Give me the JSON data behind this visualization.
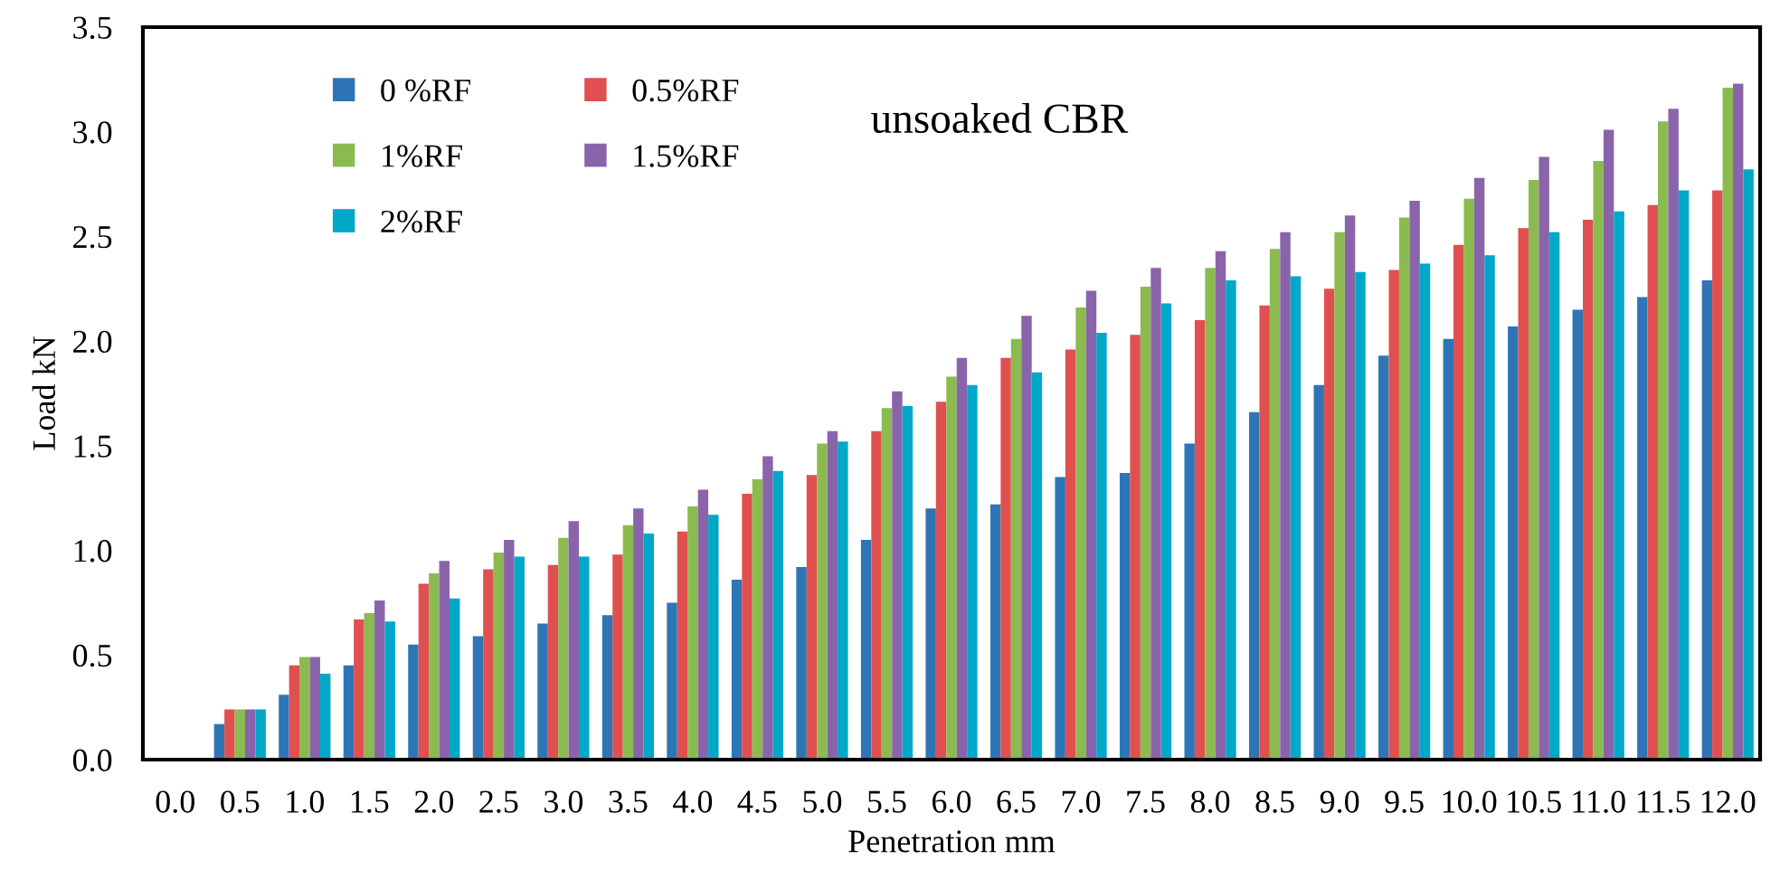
{
  "chart_data": {
    "type": "bar",
    "title": "unsoaked CBR",
    "xlabel": "Penetration mm",
    "ylabel": "Load kN",
    "categories": [
      "0.0",
      "0.5",
      "1.0",
      "1.5",
      "2.0",
      "2.5",
      "3.0",
      "3.5",
      "4.0",
      "4.5",
      "5.0",
      "5.5",
      "6.0",
      "6.5",
      "7.0",
      "7.5",
      "8.0",
      "8.5",
      "9.0",
      "9.5",
      "10.0",
      "10.5",
      "11.0",
      "11.5",
      "12.0"
    ],
    "series": [
      {
        "name": "0 %RF",
        "color": "#2e75b6",
        "values": [
          0,
          0.17,
          0.31,
          0.45,
          0.55,
          0.59,
          0.65,
          0.69,
          0.75,
          0.86,
          0.92,
          1.05,
          1.2,
          1.22,
          1.35,
          1.37,
          1.51,
          1.66,
          1.79,
          1.93,
          2.01,
          2.07,
          2.15,
          2.21,
          2.29
        ]
      },
      {
        "name": "0.5%RF",
        "color": "#e05050",
        "values": [
          0,
          0.24,
          0.45,
          0.67,
          0.84,
          0.91,
          0.93,
          0.98,
          1.09,
          1.27,
          1.36,
          1.57,
          1.71,
          1.92,
          1.96,
          2.03,
          2.1,
          2.17,
          2.25,
          2.34,
          2.46,
          2.54,
          2.58,
          2.65,
          2.72
        ]
      },
      {
        "name": "1%RF",
        "color": "#8bbb50",
        "values": [
          0,
          0.24,
          0.49,
          0.7,
          0.89,
          0.99,
          1.06,
          1.12,
          1.21,
          1.34,
          1.51,
          1.68,
          1.83,
          2.01,
          2.16,
          2.26,
          2.35,
          2.44,
          2.52,
          2.59,
          2.68,
          2.77,
          2.86,
          3.05,
          3.21
        ]
      },
      {
        "name": "1.5%RF",
        "color": "#8a64aa",
        "values": [
          0,
          0.24,
          0.49,
          0.76,
          0.95,
          1.05,
          1.14,
          1.2,
          1.29,
          1.45,
          1.57,
          1.76,
          1.92,
          2.12,
          2.24,
          2.35,
          2.43,
          2.52,
          2.6,
          2.67,
          2.78,
          2.88,
          3.01,
          3.11,
          3.23
        ]
      },
      {
        "name": "2%RF",
        "color": "#00a8c8",
        "values": [
          0,
          0.24,
          0.41,
          0.66,
          0.77,
          0.97,
          0.97,
          1.08,
          1.17,
          1.38,
          1.52,
          1.69,
          1.79,
          1.85,
          2.04,
          2.18,
          2.29,
          2.31,
          2.33,
          2.37,
          2.41,
          2.52,
          2.62,
          2.72,
          2.82
        ]
      }
    ],
    "ylim": [
      0,
      3.5
    ],
    "yticks": [
      {
        "value": 0,
        "label": "0.0"
      },
      {
        "value": 0.5,
        "label": "0.5"
      },
      {
        "value": 1,
        "label": "1.0"
      },
      {
        "value": 1.5,
        "label": "1.5"
      },
      {
        "value": 2,
        "label": "2.0"
      },
      {
        "value": 2.5,
        "label": "2.5"
      },
      {
        "value": 3,
        "label": "3.0"
      },
      {
        "value": 3.5,
        "label": "3.5"
      }
    ],
    "grid": false,
    "legend": "top left"
  }
}
